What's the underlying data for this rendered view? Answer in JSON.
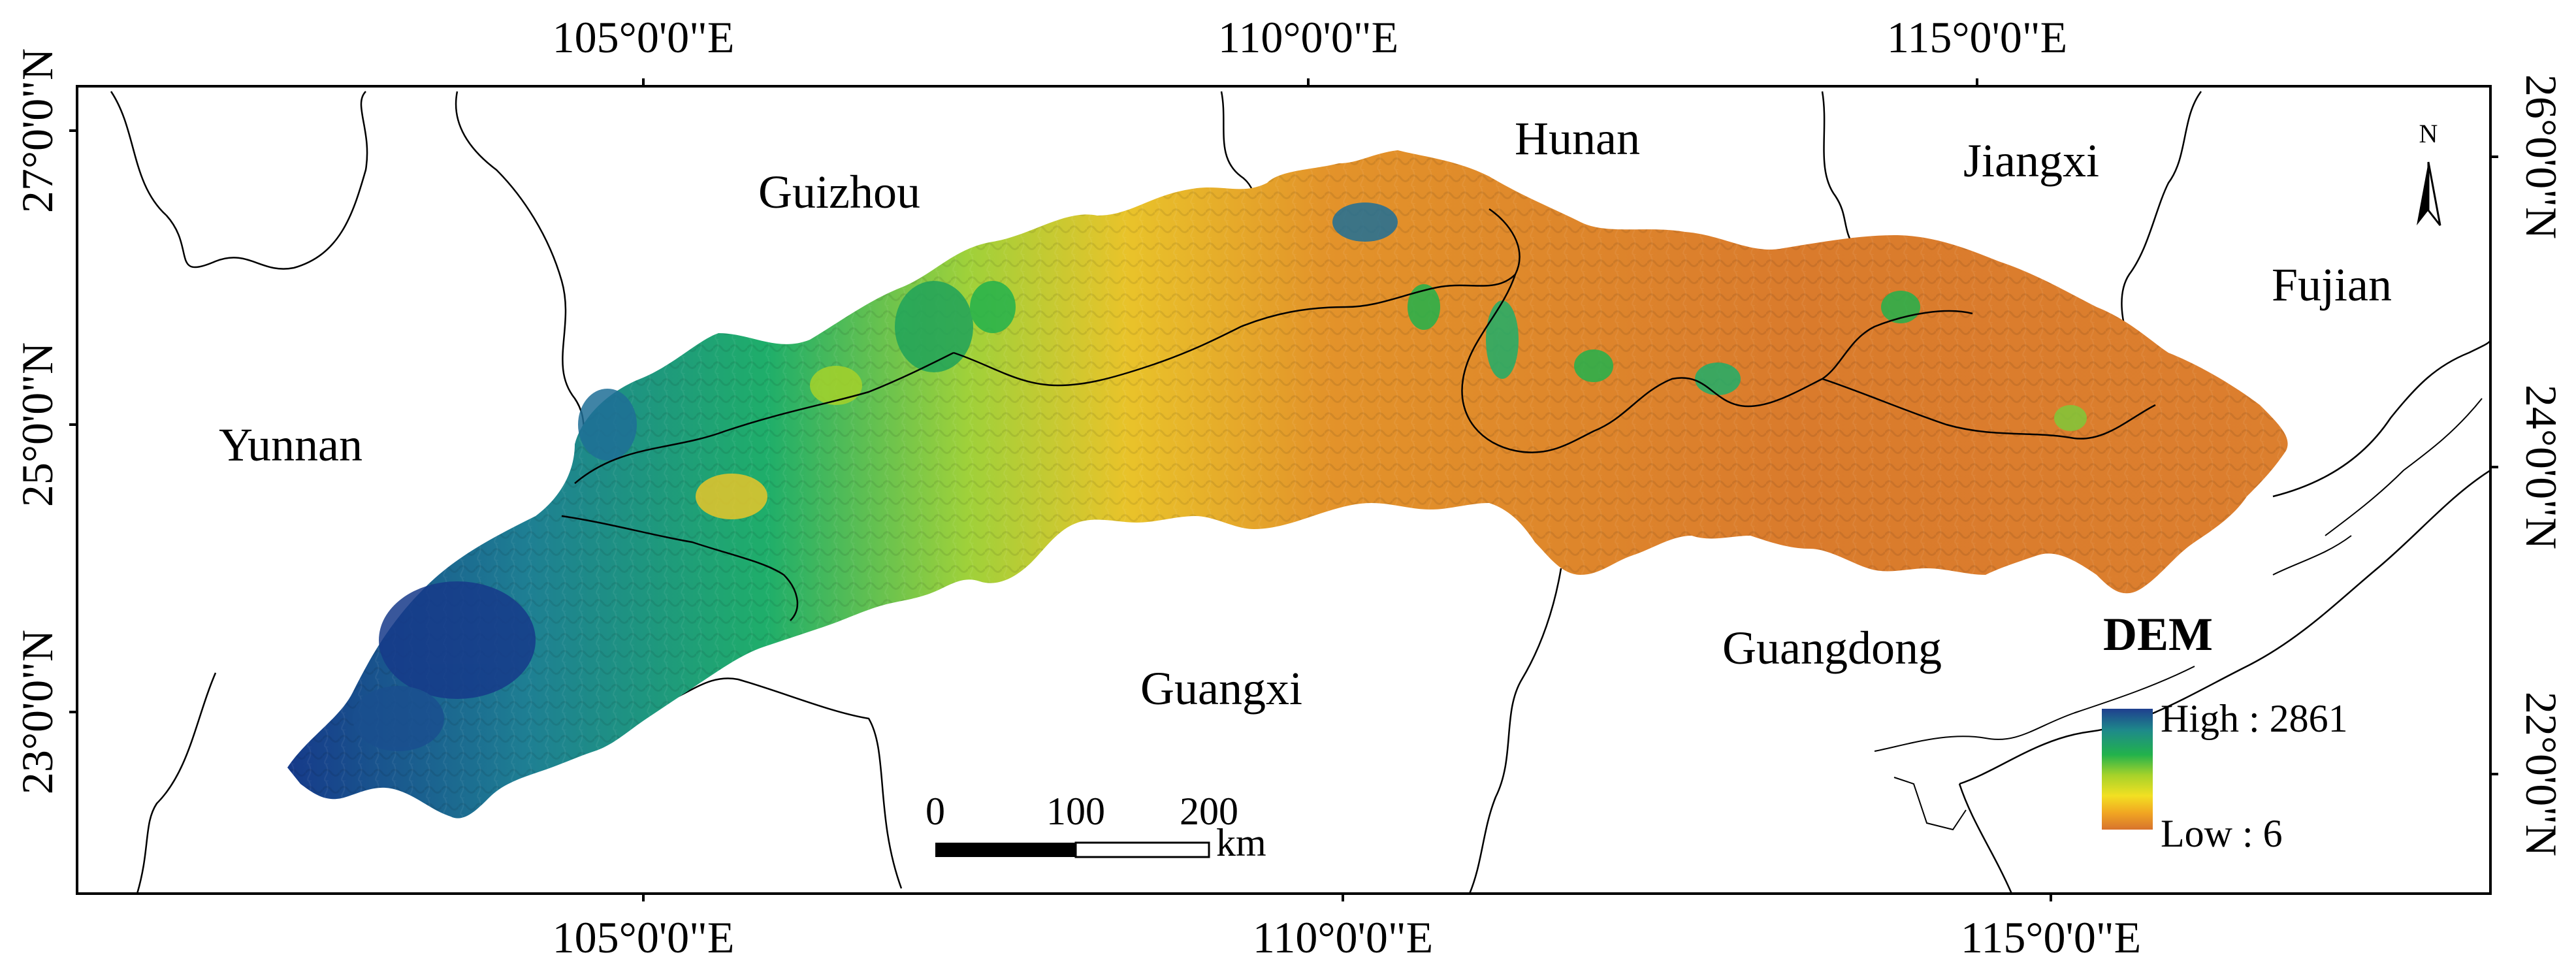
{
  "axes": {
    "top_ticks": [
      "105°0'0\"E",
      "110°0'0\"E",
      "115°0'0\"E"
    ],
    "bottom_ticks": [
      "105°0'0\"E",
      "110°0'0\"E",
      "115°0'0\"E"
    ],
    "left_ticks": [
      "27°0'0\"N",
      "25°0'0\"N",
      "23°0'0\"N"
    ],
    "right_ticks": [
      "26°0'0\"N",
      "24°0'0\"N",
      "22°0'0\"N"
    ]
  },
  "regions": {
    "guizhou": "Guizhou",
    "hunan": "Hunan",
    "jiangxi": "Jiangxi",
    "fujian": "Fujian",
    "yunnan": "Yunnan",
    "guangxi": "Guangxi",
    "guangdong": "Guangdong"
  },
  "north_arrow": {
    "label": "N"
  },
  "legend": {
    "title": "DEM",
    "high_label": "High : 2861",
    "low_label": "Low : 6",
    "colors": [
      "#1f3f8f",
      "#1e8a8a",
      "#22b24c",
      "#a6d22a",
      "#f2e022",
      "#f1a722",
      "#d8732d"
    ]
  },
  "scale_bar": {
    "ticks": [
      "0",
      "100",
      "200"
    ],
    "unit": "km"
  }
}
